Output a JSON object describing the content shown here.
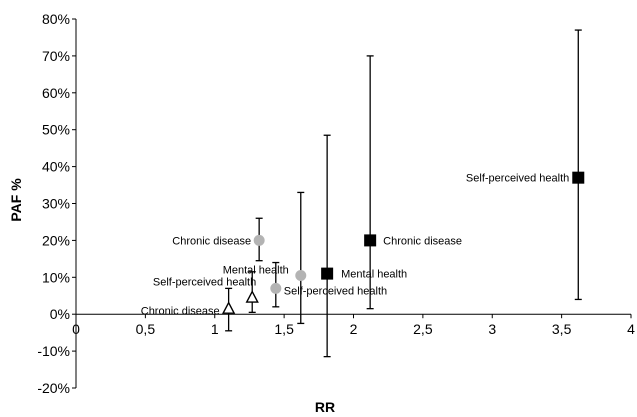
{
  "chart_data": {
    "type": "scatter",
    "title": "",
    "xlabel": "RR",
    "ylabel": "PAF %",
    "xlim": [
      0,
      4
    ],
    "ylim": [
      -20,
      80
    ],
    "grid": false,
    "x_ticks": [
      {
        "v": 0,
        "label": "0"
      },
      {
        "v": 0.5,
        "label": "0,5"
      },
      {
        "v": 1,
        "label": "1"
      },
      {
        "v": 1.5,
        "label": "1,5"
      },
      {
        "v": 2,
        "label": "2"
      },
      {
        "v": 2.5,
        "label": "2,5"
      },
      {
        "v": 3,
        "label": "3"
      },
      {
        "v": 3.5,
        "label": "3,5"
      },
      {
        "v": 4,
        "label": "4"
      }
    ],
    "y_ticks": [
      {
        "v": -20,
        "label": "-20%"
      },
      {
        "v": -10,
        "label": "-10%"
      },
      {
        "v": 0,
        "label": "0%"
      },
      {
        "v": 10,
        "label": "10%"
      },
      {
        "v": 20,
        "label": "20%"
      },
      {
        "v": 30,
        "label": "30%"
      },
      {
        "v": 40,
        "label": "40%"
      },
      {
        "v": 50,
        "label": "50%"
      },
      {
        "v": 60,
        "label": "60%"
      },
      {
        "v": 70,
        "label": "70%"
      },
      {
        "v": 80,
        "label": "80%"
      }
    ],
    "series": [
      {
        "marker": "triangle-open",
        "color": "#000000",
        "points": [
          {
            "label": "Chronic disease",
            "x": 1.1,
            "y": 1.5,
            "low": -4.5,
            "high": 7.0
          },
          {
            "label": "Self-perceived health",
            "x": 1.27,
            "y": 4.5,
            "low": 0.5,
            "high": 11.5
          }
        ]
      },
      {
        "marker": "circle",
        "color": "#b3b3b3",
        "points": [
          {
            "label": "Chronic disease",
            "x": 1.32,
            "y": 20.0,
            "low": 14.5,
            "high": 26.0
          },
          {
            "label": "Self-perceived health",
            "x": 1.44,
            "y": 7.0,
            "low": 2.0,
            "high": 14.0
          },
          {
            "label": "Mental health",
            "x": 1.62,
            "y": 10.5,
            "low": -2.5,
            "high": 33.0
          }
        ]
      },
      {
        "marker": "square",
        "color": "#000000",
        "points": [
          {
            "label": "Mental health",
            "x": 1.81,
            "y": 11.0,
            "low": -11.5,
            "high": 48.5
          },
          {
            "label": "Chronic disease",
            "x": 2.12,
            "y": 20.0,
            "low": 1.5,
            "high": 70.0
          },
          {
            "label": "Self-perceived health",
            "x": 3.62,
            "y": 37.0,
            "low": 4.0,
            "high": 77.0
          }
        ]
      }
    ]
  }
}
